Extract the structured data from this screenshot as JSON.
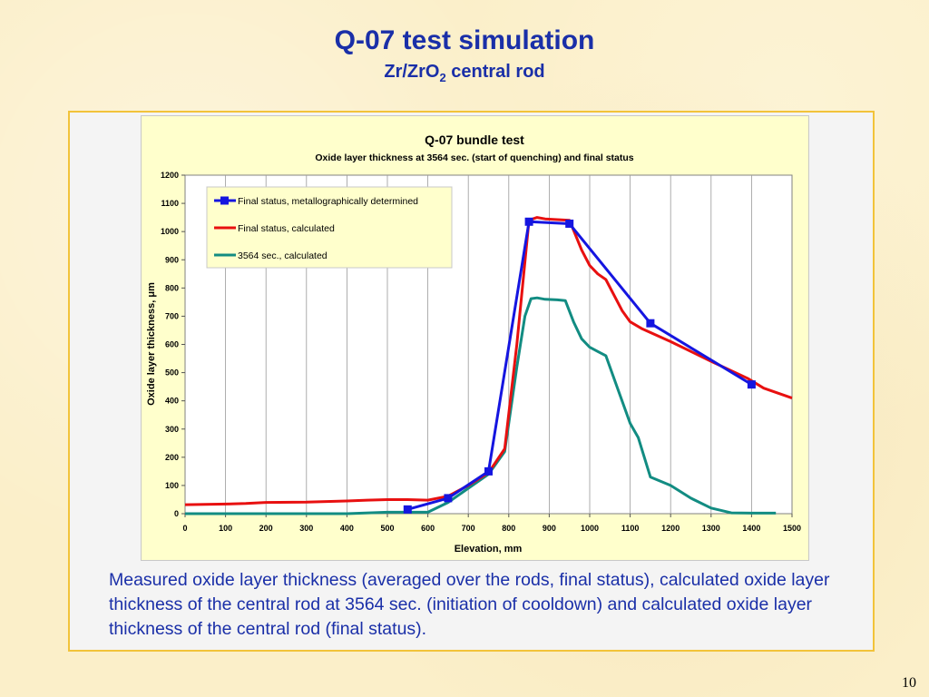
{
  "slide": {
    "title": "Q-07 test simulation",
    "subtitle_main": "Zr/ZrO",
    "subtitle_sub": "2",
    "subtitle_rest": " central rod",
    "caption": "Measured oxide layer thickness (averaged over the rods, final status), calculated oxide layer thickness of the central rod at 3564 sec. (initiation of cooldown) and calculated oxide layer thickness of the central rod (final status).",
    "page_number": "10"
  },
  "chart_data": {
    "type": "line",
    "title": "Q-07 bundle test",
    "subtitle": "Oxide layer thickness at 3564 sec. (start of quenching) and final status",
    "xlabel": "Elevation, mm",
    "ylabel": "Oxide layer thickness, μm",
    "xlim": [
      0,
      1500
    ],
    "ylim": [
      0,
      1200
    ],
    "x_ticks": [
      0,
      100,
      200,
      300,
      400,
      500,
      600,
      700,
      800,
      900,
      1000,
      1100,
      1200,
      1300,
      1400,
      1500
    ],
    "y_ticks": [
      0,
      100,
      200,
      300,
      400,
      500,
      600,
      700,
      800,
      900,
      1000,
      1100,
      1200
    ],
    "grid": "vertical",
    "legend_position": "top-left",
    "series": [
      {
        "name": "Final status, metallographically determined",
        "color": "#1515e0",
        "markers": true,
        "x": [
          550,
          650,
          750,
          850,
          950,
          1150,
          1400
        ],
        "y": [
          15,
          55,
          150,
          1035,
          1028,
          675,
          458
        ]
      },
      {
        "name": "Final status, calculated",
        "color": "#e81010",
        "markers": false,
        "x": [
          0,
          100,
          150,
          200,
          300,
          400,
          450,
          500,
          550,
          600,
          650,
          700,
          750,
          790,
          820,
          850,
          870,
          890,
          950,
          980,
          1000,
          1020,
          1040,
          1080,
          1100,
          1130,
          1200,
          1300,
          1390,
          1430,
          1500
        ],
        "y": [
          32,
          34,
          36,
          40,
          41,
          45,
          48,
          50,
          50,
          48,
          62,
          100,
          145,
          230,
          600,
          1040,
          1050,
          1045,
          1040,
          935,
          880,
          850,
          830,
          720,
          680,
          655,
          610,
          540,
          480,
          445,
          410
        ]
      },
      {
        "name": "3564 sec., calculated",
        "color": "#128c82",
        "markers": false,
        "x": [
          0,
          100,
          200,
          300,
          400,
          500,
          550,
          600,
          650,
          700,
          750,
          790,
          820,
          840,
          855,
          870,
          890,
          920,
          940,
          960,
          980,
          1000,
          1020,
          1040,
          1070,
          1100,
          1120,
          1150,
          1200,
          1250,
          1300,
          1350,
          1400,
          1450,
          1460
        ],
        "y": [
          0,
          0,
          0,
          0,
          0,
          5,
          5,
          5,
          40,
          90,
          140,
          220,
          520,
          700,
          762,
          765,
          760,
          758,
          755,
          680,
          620,
          590,
          575,
          560,
          440,
          320,
          270,
          130,
          100,
          55,
          20,
          3,
          2,
          2,
          2
        ]
      }
    ]
  }
}
